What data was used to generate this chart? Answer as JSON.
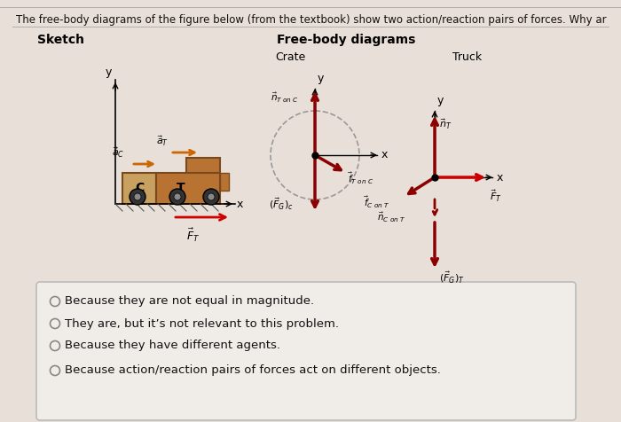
{
  "bg_color": "#e8e0d8",
  "title_text": "The free-body diagrams of the figure below (from the textbook) show two action/reaction pairs of forces. Why ar",
  "sketch_label": "Sketch",
  "fbd_label": "Free-body diagrams",
  "crate_label": "Crate",
  "truck_label": "Truck",
  "answer_options": [
    "Because they are not equal in magnitude.",
    "They are, but it’s not relevant to this problem.",
    "Because they have different agents.",
    "Because action/reaction pairs of forces act on different objects."
  ],
  "dark_red": "#8B0000",
  "red": "#CC0000",
  "black": "#000000",
  "orange_arrow": "#CC6600",
  "truck_brown": "#B87333",
  "truck_dark": "#7a4a1e",
  "crate_color": "#c8a060",
  "wheel_dark": "#333333",
  "ground_color": "#555555",
  "box_face": "#f0ede8",
  "box_edge": "#bbbbbb",
  "radio_color": "#888888",
  "title_fs": 8.5,
  "label_fs": 10,
  "answer_fs": 9.5
}
